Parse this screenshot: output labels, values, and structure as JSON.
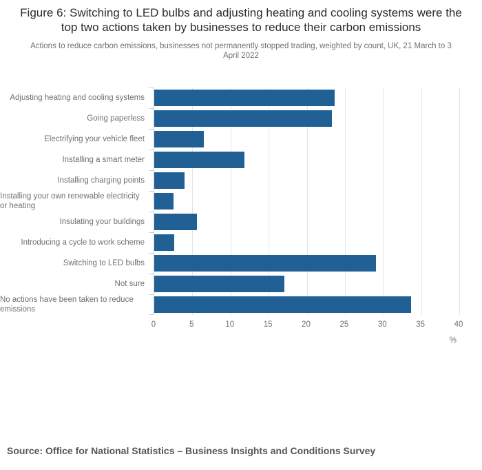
{
  "header": {
    "title": "Figure 6: Switching to LED bulbs and adjusting heating and cooling systems were the top two actions taken by businesses to reduce their carbon emissions",
    "subtitle": "Actions to reduce carbon emissions, businesses not permanently stopped trading, weighted by count, UK, 21 March to 3 April 2022"
  },
  "chart_data": {
    "type": "bar",
    "orientation": "horizontal",
    "title": "Figure 6: Switching to LED bulbs and adjusting heating and cooling systems were the top two actions taken by businesses to reduce their carbon emissions",
    "subtitle": "Actions to reduce carbon emissions, businesses not permanently stopped trading, weighted by count, UK, 21 March to 3 April 2022",
    "categories": [
      "Adjusting heating and cooling systems",
      "Going paperless",
      "Electrifying your vehicle fleet",
      "Installing a smart meter",
      "Installing charging points",
      "Installing your own renewable electricity or heating",
      "Insulating your buildings",
      "Introducing a cycle to work scheme",
      "Switching to LED bulbs",
      "Not sure",
      "No actions have been taken to reduce emissions"
    ],
    "values": [
      23.7,
      23.3,
      6.5,
      11.8,
      4.0,
      2.5,
      5.6,
      2.6,
      29.1,
      17.1,
      33.7
    ],
    "xlabel": "%",
    "ylabel": "",
    "xlim": [
      0,
      40
    ],
    "xticks": [
      0,
      5,
      10,
      15,
      20,
      25,
      30,
      35,
      40
    ],
    "grid": true,
    "legend": false,
    "bar_color": "#206095",
    "gridline_color": "#e2e5e8",
    "axis_color": "#c3cfdb",
    "label_color": "#707071"
  },
  "footer": {
    "source": "Source: Office for National Statistics – Business Insights and Conditions Survey"
  }
}
